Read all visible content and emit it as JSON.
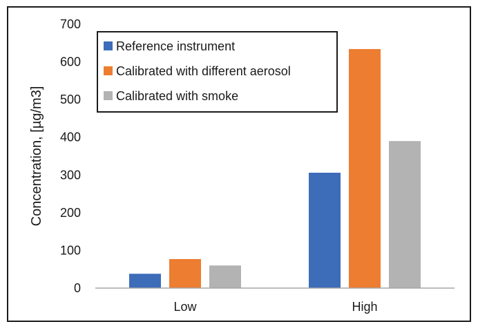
{
  "chart_data": {
    "type": "bar",
    "categories": [
      "Low",
      "High"
    ],
    "series": [
      {
        "name": "Reference instrument",
        "color": "#3d6cb9",
        "values": [
          38,
          306
        ]
      },
      {
        "name": "Calibrated with different aerosol",
        "color": "#ed7d31",
        "values": [
          77,
          634
        ]
      },
      {
        "name": "Calibrated with smoke",
        "color": "#b3b3b3",
        "values": [
          60,
          390
        ]
      }
    ],
    "ylabel": "Concentration, [µg/m3]",
    "ylim": [
      0,
      700
    ],
    "yticks": [
      0,
      100,
      200,
      300,
      400,
      500,
      600,
      700
    ],
    "grid": false,
    "legend_position": "top-left"
  }
}
